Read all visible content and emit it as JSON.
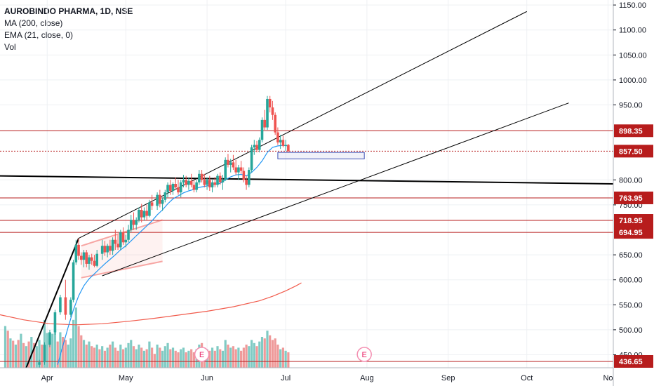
{
  "header": {
    "symbol": "AUROBINDO PHARMA, 1D, NSE",
    "indicators": [
      "MA (200, close)",
      "EMA (21, close, 0)",
      "Vol"
    ]
  },
  "chart_data": {
    "type": "candlestick",
    "yaxis_ticks": [
      1150,
      1100,
      1050,
      1000,
      950,
      800,
      750,
      650,
      600,
      550,
      500,
      450
    ],
    "yaxis_tick_labels": [
      "1150.00",
      "1100.00",
      "1050.00",
      "1000.00",
      "950.00",
      "800.00",
      "750.00",
      "650.00",
      "600.00",
      "550.00",
      "500.00",
      "450.00"
    ],
    "ylim": [
      424,
      1160
    ],
    "xaxis_labels": [
      "Apr",
      "May",
      "Jun",
      "Jul",
      "Aug",
      "Sep",
      "Oct",
      "No"
    ],
    "x_days_of_labels": [
      9,
      39,
      70,
      100,
      131,
      162,
      192,
      223
    ],
    "xlim": [
      -9,
      225
    ],
    "price_levels": [
      {
        "value": 898.35,
        "label": "898.35",
        "style": "solid"
      },
      {
        "value": 857.5,
        "label": "857.50",
        "style": "dotted",
        "current": true
      },
      {
        "value": 763.95,
        "label": "763.95",
        "style": "solid"
      },
      {
        "value": 718.95,
        "label": "718.95",
        "style": "solid"
      },
      {
        "value": 694.95,
        "label": "694.95",
        "style": "solid"
      },
      {
        "value": 436.65,
        "label": "436.65",
        "style": "solid"
      }
    ],
    "earnings_markers": [
      {
        "day": 68,
        "label": "E"
      },
      {
        "day": 130,
        "label": "E"
      }
    ],
    "colors": {
      "up": "#26a69a",
      "down": "#ef5350",
      "vol_up": "#80cbc4",
      "vol_down": "#ef9a9a",
      "ema": "#2196f3",
      "ma": "#f15b4c",
      "level": "#b71c1c",
      "trendline": "#000000",
      "grid": "#eef0f3"
    },
    "trendlines": [
      {
        "from": [
          1,
          424
        ],
        "to": [
          21,
          683
        ],
        "width": 2
      },
      {
        "from": [
          21,
          683
        ],
        "to": [
          192,
          1137
        ],
        "width": 1
      },
      {
        "from": [
          30,
          608
        ],
        "to": [
          208,
          954
        ],
        "width": 1
      },
      {
        "from": [
          -9,
          808
        ],
        "to": [
          225,
          792
        ],
        "width": 2
      }
    ],
    "channel": {
      "upper": [
        [
          22,
          668
        ],
        [
          53,
          720
        ]
      ],
      "lower": [
        [
          22,
          604
        ],
        [
          53,
          637
        ]
      ]
    },
    "box": {
      "from": [
        97,
        855
      ],
      "to": [
        130,
        842
      ]
    },
    "candles": [
      [
        6,
        430,
        440,
        424,
        435
      ],
      [
        8,
        435,
        475,
        430,
        470
      ],
      [
        10,
        470,
        500,
        465,
        495
      ],
      [
        12,
        495,
        540,
        490,
        535
      ],
      [
        14,
        535,
        570,
        530,
        565
      ],
      [
        16,
        565,
        600,
        520,
        530
      ],
      [
        18,
        530,
        565,
        525,
        560
      ],
      [
        19,
        560,
        640,
        555,
        635
      ],
      [
        20,
        635,
        680,
        630,
        670
      ],
      [
        21,
        670,
        683,
        640,
        648
      ],
      [
        22,
        648,
        655,
        630,
        640
      ],
      [
        23,
        640,
        660,
        625,
        655
      ],
      [
        24,
        655,
        660,
        625,
        632
      ],
      [
        25,
        632,
        650,
        620,
        645
      ],
      [
        26,
        645,
        652,
        630,
        638
      ],
      [
        27,
        638,
        650,
        625,
        628
      ],
      [
        28,
        628,
        660,
        625,
        652
      ],
      [
        30,
        652,
        680,
        640,
        668
      ],
      [
        31,
        668,
        678,
        648,
        655
      ],
      [
        32,
        655,
        672,
        645,
        668
      ],
      [
        33,
        668,
        680,
        650,
        658
      ],
      [
        34,
        658,
        685,
        650,
        680
      ],
      [
        35,
        680,
        700,
        660,
        672
      ],
      [
        36,
        672,
        690,
        660,
        665
      ],
      [
        37,
        665,
        700,
        660,
        695
      ],
      [
        38,
        695,
        705,
        670,
        675
      ],
      [
        39,
        675,
        690,
        665,
        680
      ],
      [
        40,
        680,
        710,
        675,
        700
      ],
      [
        41,
        700,
        730,
        695,
        720
      ],
      [
        42,
        720,
        735,
        700,
        710
      ],
      [
        43,
        710,
        725,
        700,
        720
      ],
      [
        44,
        720,
        745,
        715,
        740
      ],
      [
        45,
        740,
        752,
        715,
        725
      ],
      [
        46,
        725,
        745,
        718,
        738
      ],
      [
        47,
        738,
        750,
        720,
        728
      ],
      [
        48,
        728,
        760,
        725,
        755
      ],
      [
        49,
        755,
        770,
        740,
        748
      ],
      [
        51,
        748,
        775,
        740,
        770
      ],
      [
        52,
        770,
        780,
        745,
        752
      ],
      [
        53,
        752,
        765,
        738,
        760
      ],
      [
        54,
        760,
        780,
        755,
        775
      ],
      [
        55,
        775,
        795,
        765,
        790
      ],
      [
        56,
        790,
        800,
        770,
        778
      ],
      [
        57,
        778,
        795,
        770,
        792
      ],
      [
        58,
        792,
        805,
        780,
        785
      ],
      [
        59,
        785,
        800,
        770,
        775
      ],
      [
        60,
        775,
        800,
        765,
        795
      ],
      [
        61,
        795,
        810,
        785,
        800
      ],
      [
        62,
        800,
        808,
        785,
        790
      ],
      [
        63,
        790,
        805,
        780,
        798
      ],
      [
        64,
        798,
        812,
        785,
        790
      ],
      [
        65,
        790,
        800,
        775,
        780
      ],
      [
        66,
        780,
        800,
        775,
        795
      ],
      [
        67,
        795,
        820,
        790,
        812
      ],
      [
        68,
        812,
        820,
        795,
        800
      ],
      [
        69,
        800,
        812,
        785,
        790
      ],
      [
        70,
        790,
        805,
        780,
        800
      ],
      [
        71,
        800,
        808,
        778,
        785
      ],
      [
        72,
        785,
        800,
        775,
        795
      ],
      [
        73,
        795,
        806,
        785,
        790
      ],
      [
        74,
        790,
        812,
        785,
        808
      ],
      [
        75,
        808,
        815,
        790,
        795
      ],
      [
        76,
        795,
        810,
        780,
        800
      ],
      [
        77,
        800,
        845,
        798,
        840
      ],
      [
        78,
        840,
        852,
        825,
        830
      ],
      [
        79,
        830,
        842,
        815,
        835
      ],
      [
        80,
        835,
        850,
        820,
        825
      ],
      [
        81,
        825,
        840,
        810,
        815
      ],
      [
        82,
        815,
        830,
        800,
        825
      ],
      [
        83,
        825,
        838,
        812,
        818
      ],
      [
        84,
        818,
        825,
        795,
        800
      ],
      [
        85,
        800,
        808,
        780,
        790
      ],
      [
        86,
        790,
        825,
        785,
        820
      ],
      [
        87,
        820,
        870,
        815,
        865
      ],
      [
        88,
        865,
        880,
        850,
        870
      ],
      [
        89,
        870,
        878,
        855,
        860
      ],
      [
        90,
        860,
        885,
        855,
        880
      ],
      [
        91,
        880,
        925,
        875,
        920
      ],
      [
        92,
        920,
        940,
        900,
        905
      ],
      [
        93,
        905,
        968,
        900,
        962
      ],
      [
        94,
        962,
        968,
        935,
        945
      ],
      [
        95,
        945,
        958,
        920,
        930
      ],
      [
        96,
        930,
        935,
        890,
        895
      ],
      [
        97,
        895,
        905,
        870,
        875
      ],
      [
        98,
        875,
        890,
        862,
        880
      ],
      [
        99,
        880,
        888,
        865,
        868
      ],
      [
        100,
        868,
        880,
        858,
        870
      ],
      [
        101,
        870,
        872,
        855,
        857.5
      ]
    ],
    "volumes": [
      [
        -7,
        54,
        1
      ],
      [
        -6,
        48,
        0
      ],
      [
        -5,
        38,
        1
      ],
      [
        -4,
        35,
        0
      ],
      [
        -3,
        30,
        1
      ],
      [
        -2,
        36,
        0
      ],
      [
        -1,
        44,
        1
      ],
      [
        0,
        32,
        0
      ],
      [
        1,
        28,
        1
      ],
      [
        2,
        34,
        0
      ],
      [
        3,
        40,
        1
      ],
      [
        4,
        32,
        0
      ],
      [
        5,
        28,
        1
      ],
      [
        6,
        36,
        1
      ],
      [
        7,
        30,
        0
      ],
      [
        8,
        62,
        1
      ],
      [
        9,
        45,
        1
      ],
      [
        10,
        38,
        0
      ],
      [
        11,
        44,
        1
      ],
      [
        12,
        60,
        1
      ],
      [
        13,
        34,
        0
      ],
      [
        14,
        46,
        1
      ],
      [
        15,
        40,
        0
      ],
      [
        16,
        36,
        0
      ],
      [
        17,
        30,
        1
      ],
      [
        18,
        38,
        1
      ],
      [
        19,
        62,
        1
      ],
      [
        20,
        78,
        1
      ],
      [
        21,
        54,
        0
      ],
      [
        22,
        42,
        0
      ],
      [
        23,
        36,
        1
      ],
      [
        24,
        30,
        0
      ],
      [
        25,
        34,
        1
      ],
      [
        26,
        28,
        0
      ],
      [
        27,
        26,
        0
      ],
      [
        28,
        30,
        1
      ],
      [
        29,
        24,
        0
      ],
      [
        30,
        28,
        1
      ],
      [
        31,
        22,
        0
      ],
      [
        32,
        26,
        1
      ],
      [
        33,
        30,
        0
      ],
      [
        34,
        34,
        1
      ],
      [
        35,
        26,
        0
      ],
      [
        36,
        22,
        0
      ],
      [
        37,
        30,
        1
      ],
      [
        38,
        24,
        0
      ],
      [
        39,
        26,
        1
      ],
      [
        40,
        32,
        1
      ],
      [
        41,
        36,
        1
      ],
      [
        42,
        28,
        0
      ],
      [
        43,
        24,
        1
      ],
      [
        44,
        30,
        1
      ],
      [
        45,
        26,
        0
      ],
      [
        46,
        22,
        1
      ],
      [
        47,
        24,
        0
      ],
      [
        48,
        34,
        1
      ],
      [
        49,
        26,
        0
      ],
      [
        50,
        18,
        0
      ],
      [
        51,
        30,
        1
      ],
      [
        52,
        26,
        0
      ],
      [
        53,
        22,
        1
      ],
      [
        54,
        28,
        1
      ],
      [
        55,
        32,
        1
      ],
      [
        56,
        24,
        0
      ],
      [
        57,
        26,
        1
      ],
      [
        58,
        22,
        0
      ],
      [
        59,
        20,
        0
      ],
      [
        60,
        24,
        1
      ],
      [
        61,
        26,
        1
      ],
      [
        62,
        20,
        0
      ],
      [
        63,
        22,
        1
      ],
      [
        64,
        24,
        0
      ],
      [
        65,
        20,
        0
      ],
      [
        66,
        24,
        1
      ],
      [
        67,
        30,
        1
      ],
      [
        68,
        32,
        0
      ],
      [
        69,
        26,
        0
      ],
      [
        70,
        24,
        1
      ],
      [
        71,
        22,
        0
      ],
      [
        72,
        26,
        1
      ],
      [
        73,
        22,
        0
      ],
      [
        74,
        28,
        1
      ],
      [
        75,
        24,
        0
      ],
      [
        76,
        22,
        1
      ],
      [
        77,
        36,
        1
      ],
      [
        78,
        30,
        0
      ],
      [
        79,
        26,
        1
      ],
      [
        80,
        28,
        0
      ],
      [
        81,
        24,
        0
      ],
      [
        82,
        26,
        1
      ],
      [
        83,
        22,
        0
      ],
      [
        84,
        26,
        0
      ],
      [
        85,
        30,
        0
      ],
      [
        86,
        28,
        1
      ],
      [
        87,
        36,
        1
      ],
      [
        88,
        32,
        1
      ],
      [
        89,
        28,
        0
      ],
      [
        90,
        34,
        1
      ],
      [
        91,
        40,
        1
      ],
      [
        92,
        38,
        0
      ],
      [
        93,
        48,
        1
      ],
      [
        94,
        42,
        0
      ],
      [
        95,
        36,
        0
      ],
      [
        96,
        38,
        0
      ],
      [
        97,
        30,
        0
      ],
      [
        98,
        24,
        1
      ],
      [
        99,
        26,
        0
      ],
      [
        100,
        22,
        1
      ],
      [
        101,
        20,
        0
      ]
    ],
    "ema21": [
      [
        13,
        430
      ],
      [
        15,
        468
      ],
      [
        17,
        505
      ],
      [
        19,
        540
      ],
      [
        21,
        568
      ],
      [
        23,
        588
      ],
      [
        25,
        602
      ],
      [
        27,
        612
      ],
      [
        29,
        622
      ],
      [
        31,
        632
      ],
      [
        33,
        641
      ],
      [
        35,
        650
      ],
      [
        37,
        660
      ],
      [
        39,
        668
      ],
      [
        41,
        678
      ],
      [
        43,
        688
      ],
      [
        45,
        698
      ],
      [
        47,
        708
      ],
      [
        49,
        718
      ],
      [
        51,
        730
      ],
      [
        53,
        740
      ],
      [
        55,
        752
      ],
      [
        57,
        762
      ],
      [
        59,
        768
      ],
      [
        61,
        774
      ],
      [
        63,
        778
      ],
      [
        65,
        781
      ],
      [
        67,
        785
      ],
      [
        69,
        787
      ],
      [
        71,
        789
      ],
      [
        73,
        791
      ],
      [
        75,
        793
      ],
      [
        77,
        800
      ],
      [
        79,
        806
      ],
      [
        81,
        810
      ],
      [
        83,
        811
      ],
      [
        85,
        808
      ],
      [
        87,
        815
      ],
      [
        89,
        825
      ],
      [
        91,
        838
      ],
      [
        93,
        855
      ],
      [
        95,
        865
      ],
      [
        97,
        868
      ],
      [
        99,
        869
      ],
      [
        101,
        868
      ]
    ],
    "ma200": [
      [
        -9,
        530
      ],
      [
        0,
        520
      ],
      [
        10,
        512
      ],
      [
        20,
        510
      ],
      [
        30,
        512
      ],
      [
        40,
        517
      ],
      [
        50,
        523
      ],
      [
        60,
        530
      ],
      [
        70,
        537
      ],
      [
        80,
        546
      ],
      [
        90,
        558
      ],
      [
        95,
        567
      ],
      [
        100,
        578
      ],
      [
        104,
        588
      ],
      [
        106,
        594
      ]
    ]
  }
}
